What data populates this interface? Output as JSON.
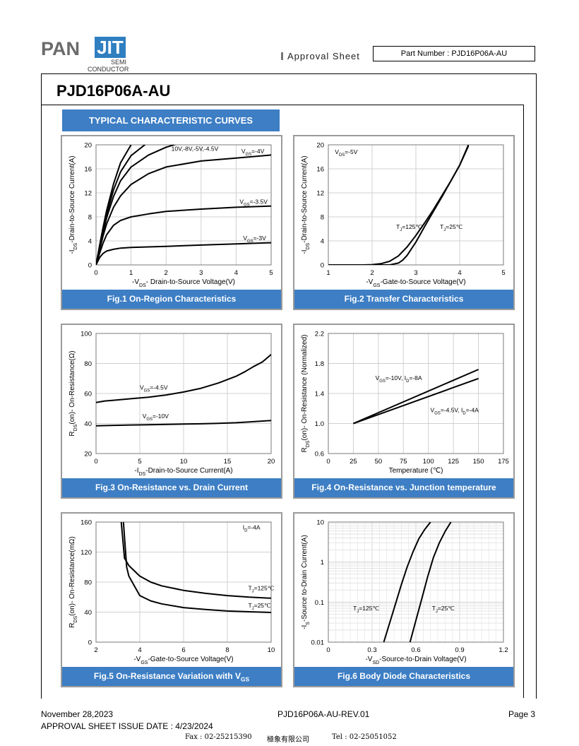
{
  "header": {
    "logo": {
      "brand_left": "PAN",
      "brand_box": "JIT",
      "sub_line1": "SEMI",
      "sub_line2": "CONDUCTOR"
    },
    "approval_label": "Approval Sheet",
    "part_number_label": "Part Number : PJD16P06A-AU",
    "title": "PJD16P06A-AU",
    "section_heading": "TYPICAL CHARACTERISTIC CURVES"
  },
  "footer": {
    "date": "November 28,2023",
    "revision": "PJD16P06A-AU-REV.01",
    "page": "Page 3",
    "issue_date": "APPROVAL SHEET ISSUE DATE : 4/23/2024",
    "fax": "Fax : 02-25215390",
    "company": "極象有限公司",
    "tel": "Tel : 02-25051052"
  },
  "colors": {
    "accent": "#3d7ec4",
    "curve": "#000000",
    "grid": "#d0d0d0",
    "panel_border": "#9a9a9a"
  },
  "chart_data": [
    {
      "id": "fig1",
      "type": "line",
      "caption": "Fig.1 On-Region Characteristics",
      "xlabel": "-V_DS- Drain-to-Source Voltage(V)",
      "ylabel": "-I_DS-Drain-to-Source Current(A)",
      "xlim": [
        0,
        5
      ],
      "ylim": [
        0,
        20
      ],
      "xticks": [
        "0",
        "1",
        "2",
        "3",
        "4",
        "5"
      ],
      "yticks": [
        "0",
        "4",
        "8",
        "12",
        "16",
        "20"
      ],
      "series": [
        {
          "name": "10V,-8V,-5V,-4.5V",
          "x": [
            0,
            0.1,
            0.2,
            0.3,
            0.5,
            0.7,
            1.0
          ],
          "y": [
            0,
            3.2,
            6.2,
            9.0,
            13.5,
            17.0,
            20
          ]
        },
        {
          "name": "10V,-8V,-5V,-4.5V",
          "x": [
            0,
            0.1,
            0.2,
            0.3,
            0.5,
            0.7,
            1.0,
            1.5
          ],
          "y": [
            0,
            3.0,
            5.8,
            8.4,
            12.5,
            15.5,
            18.2,
            20.5
          ]
        },
        {
          "name": "10V,-8V,-5V,-4.5V",
          "x": [
            0,
            0.1,
            0.2,
            0.3,
            0.5,
            0.7,
            1.0,
            1.5,
            2.0,
            2.5
          ],
          "y": [
            0,
            2.8,
            5.4,
            7.8,
            11.4,
            14.0,
            16.3,
            18.3,
            19.6,
            20.5
          ]
        },
        {
          "name": "V_GS=-4V",
          "x": [
            0,
            0.1,
            0.2,
            0.3,
            0.5,
            0.7,
            1.0,
            1.5,
            2.0,
            3.0,
            4.0,
            5.0
          ],
          "y": [
            0,
            2.5,
            4.8,
            6.8,
            9.6,
            11.5,
            13.4,
            15.2,
            16.3,
            17.3,
            17.8,
            18.3
          ]
        },
        {
          "name": "V_GS=-3.5V",
          "x": [
            0,
            0.1,
            0.2,
            0.3,
            0.5,
            0.7,
            1.0,
            1.5,
            2.0,
            3.0,
            4.0,
            5.0
          ],
          "y": [
            0,
            1.9,
            3.6,
            5.0,
            6.6,
            7.4,
            8.0,
            8.5,
            8.9,
            9.3,
            9.6,
            9.8
          ]
        },
        {
          "name": "V_GS=-3V",
          "x": [
            0,
            0.1,
            0.2,
            0.3,
            0.5,
            0.7,
            1.0,
            1.5,
            2.0,
            3.0,
            4.0,
            5.0
          ],
          "y": [
            0,
            1.2,
            1.9,
            2.3,
            2.6,
            2.8,
            2.9,
            3.0,
            3.1,
            3.3,
            3.5,
            3.7
          ]
        }
      ],
      "labels": [
        {
          "text": "10V,-8V,-5V,-4.5V",
          "x": 2.15,
          "y": 19.0
        },
        {
          "text": "V_GS=-4V",
          "x": 4.15,
          "y": 18.6
        },
        {
          "text": "V_GS=-3.5V",
          "x": 4.1,
          "y": 10.2
        },
        {
          "text": "V_GS=-3V",
          "x": 4.2,
          "y": 4.1
        }
      ]
    },
    {
      "id": "fig2",
      "type": "line",
      "caption": "Fig.2 Transfer Characteristics",
      "xlabel": "-V_GS-Gate-to-Source Voltage(V)",
      "ylabel": "-I_DS-Drain-to-Source Current(A)",
      "xlim": [
        1,
        5
      ],
      "ylim": [
        0,
        20
      ],
      "xticks": [
        "1",
        "2",
        "3",
        "4",
        "5"
      ],
      "yticks": [
        "0",
        "4",
        "8",
        "12",
        "16",
        "20"
      ],
      "series": [
        {
          "name": "T_J=125℃",
          "x": [
            1.0,
            1.8,
            2.0,
            2.2,
            2.4,
            2.6,
            2.8,
            3.0,
            3.2,
            3.4,
            3.6,
            3.8,
            4.0,
            4.2
          ],
          "y": [
            0,
            0,
            0.05,
            0.2,
            0.6,
            1.5,
            3.0,
            4.9,
            7.0,
            9.2,
            11.6,
            14.0,
            16.6,
            19.8
          ]
        },
        {
          "name": "T_J=25℃",
          "x": [
            1.0,
            2.4,
            2.6,
            2.7,
            2.8,
            3.0,
            3.2,
            3.4,
            3.6,
            3.8,
            4.0,
            4.2
          ],
          "y": [
            0,
            0,
            0.3,
            0.8,
            1.6,
            3.8,
            6.4,
            8.9,
            11.4,
            14.0,
            16.6,
            20.0
          ]
        }
      ],
      "labels": [
        {
          "text": "V_DS=-5V",
          "x": 1.15,
          "y": 18.5
        },
        {
          "text": "T_J=125℃",
          "x": 2.55,
          "y": 6.0
        },
        {
          "text": "T_J=25℃",
          "x": 3.55,
          "y": 6.0
        }
      ]
    },
    {
      "id": "fig3",
      "type": "line",
      "caption": "Fig.3 On-Resistance vs. Drain Current",
      "xlabel": "-I_DS-Drain-to-Source  Current(A)",
      "ylabel": "R_DS(on)- On-Resistance(Ω)",
      "xlim": [
        0,
        20
      ],
      "ylim": [
        20,
        100
      ],
      "xticks": [
        "0",
        "5",
        "10",
        "15",
        "20"
      ],
      "yticks": [
        "20",
        "40",
        "60",
        "80",
        "100"
      ],
      "series": [
        {
          "name": "V_GS=-4.5V",
          "x": [
            0,
            1,
            2,
            4,
            6,
            8,
            10,
            12,
            14,
            16,
            17,
            18,
            19,
            20
          ],
          "y": [
            54,
            55,
            55.5,
            56.5,
            57.5,
            59,
            61,
            63.5,
            67,
            71.5,
            74.5,
            78,
            81,
            86
          ]
        },
        {
          "name": "V_GS=-10V",
          "x": [
            0,
            2,
            4,
            6,
            8,
            10,
            12,
            14,
            16,
            18,
            20
          ],
          "y": [
            38.5,
            38.8,
            39,
            39.2,
            39.4,
            39.6,
            39.8,
            40.1,
            40.5,
            41.2,
            42
          ]
        }
      ],
      "labels": [
        {
          "text": "V_GS=-4.5V",
          "x": 5.0,
          "y": 62.5
        },
        {
          "text": "V_GS=-10V",
          "x": 5.3,
          "y": 43.5
        }
      ]
    },
    {
      "id": "fig4",
      "type": "line",
      "caption": "Fig.4 On-Resistance vs. Junction temperature",
      "xlabel": "Temperature (℃)",
      "ylabel": "R_DS(on)- On-Resistance (Normalized)",
      "xlim": [
        0,
        175
      ],
      "ylim": [
        0.6,
        2.2
      ],
      "xticks": [
        "0",
        "25",
        "50",
        "75",
        "100",
        "125",
        "150",
        "175"
      ],
      "yticks": [
        "0.6",
        "1.0",
        "1.4",
        "1.8",
        "2.2"
      ],
      "series": [
        {
          "name": "V_GS=-10V, I_D=-8A",
          "x": [
            25,
            150
          ],
          "y": [
            1.0,
            1.72
          ]
        },
        {
          "name": "V_GS=-4.5V, I_D=-4A",
          "x": [
            25,
            150
          ],
          "y": [
            1.0,
            1.6
          ]
        }
      ],
      "labels": [
        {
          "text": "V_GS=-10V, I_D=-8A",
          "x": 47,
          "y": 1.58
        },
        {
          "text": "V_GS=-4.5V, I_D=-4A",
          "x": 102,
          "y": 1.15
        }
      ]
    },
    {
      "id": "fig5",
      "type": "line",
      "caption": "Fig.5 On-Resistance Variation with V_GS",
      "xlabel": "-V_GS-Gate-to-Source  Voltage(V)",
      "ylabel": "R_DS(on)- On-Resistance(mΩ)",
      "xlim": [
        2,
        10
      ],
      "ylim": [
        0,
        160
      ],
      "xticks": [
        "2",
        "4",
        "6",
        "8",
        "10"
      ],
      "yticks": [
        "0",
        "40",
        "80",
        "120",
        "160"
      ],
      "series": [
        {
          "name": "T_J=125℃",
          "x": [
            3.15,
            3.3,
            3.5,
            4.0,
            4.5,
            5.0,
            6.0,
            7.0,
            8.0,
            9.0,
            10.0
          ],
          "y": [
            160,
            112,
            102,
            88,
            80,
            75,
            69,
            65,
            62,
            60,
            58.5
          ]
        },
        {
          "name": "T_J=25℃",
          "x": [
            3.25,
            3.4,
            3.5,
            4.0,
            4.5,
            5.0,
            6.0,
            7.0,
            8.0,
            9.0,
            10.0
          ],
          "y": [
            160,
            100,
            88,
            62,
            55,
            51,
            46,
            43.5,
            41.5,
            40.5,
            39.5
          ]
        }
      ],
      "labels": [
        {
          "text": "I_D=-4A",
          "x": 8.7,
          "y": 150
        },
        {
          "text": "T_J=125℃",
          "x": 8.95,
          "y": 69
        },
        {
          "text": "T_J=25℃",
          "x": 8.95,
          "y": 46
        }
      ]
    },
    {
      "id": "fig6",
      "type": "line",
      "caption": "Fig.6 Body Diode Characteristics",
      "xlabel": "-V_SD-Source-to-Drain Voltage(V)",
      "ylabel": "-I_S-Source to-Drain Current(A)",
      "xlim": [
        0,
        1.2
      ],
      "ylim": [
        0.01,
        10
      ],
      "yscale": "log",
      "xticks": [
        "0",
        "0.3",
        "0.6",
        "0.9",
        "1.2"
      ],
      "yticks": [
        "0.01",
        "0.1",
        "1",
        "10"
      ],
      "series": [
        {
          "name": "T_J=125℃",
          "x": [
            0.38,
            0.42,
            0.46,
            0.5,
            0.54,
            0.58,
            0.62,
            0.66,
            0.7
          ],
          "y": [
            0.01,
            0.03,
            0.09,
            0.27,
            0.75,
            1.8,
            3.8,
            6.5,
            10
          ]
        },
        {
          "name": "T_J=25℃",
          "x": [
            0.56,
            0.6,
            0.64,
            0.68,
            0.72,
            0.76,
            0.8,
            0.84
          ],
          "y": [
            0.01,
            0.035,
            0.12,
            0.42,
            1.3,
            3.0,
            5.8,
            10
          ]
        }
      ],
      "labels": [
        {
          "text": "T_J=125℃",
          "x": 0.17,
          "y": 0.062
        },
        {
          "text": "T_J=25℃",
          "x": 0.71,
          "y": 0.062
        }
      ]
    }
  ]
}
